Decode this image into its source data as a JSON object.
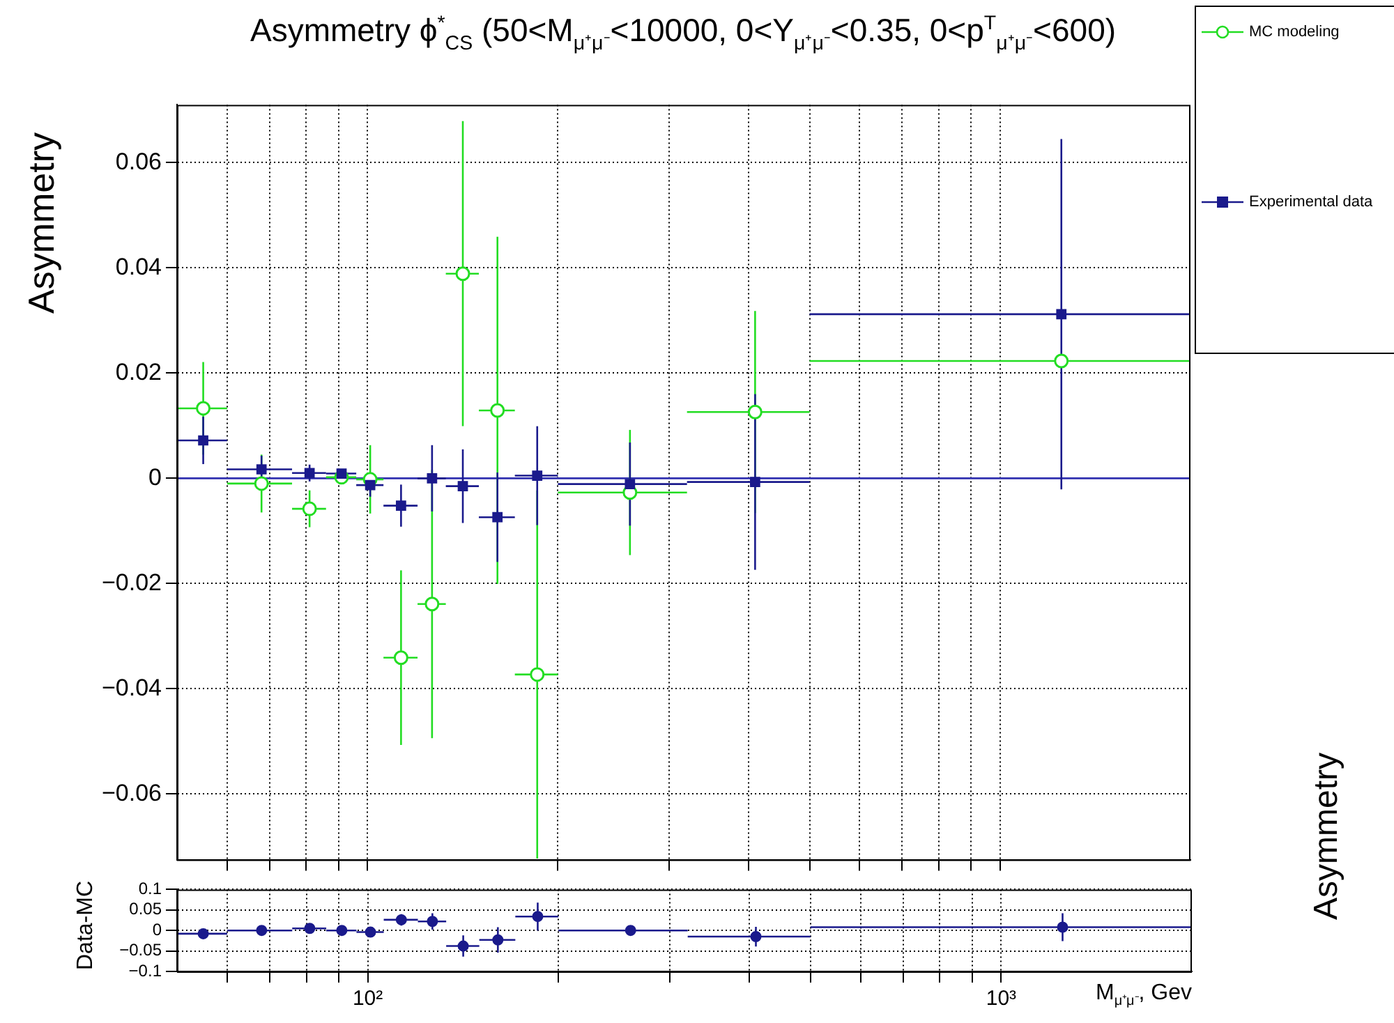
{
  "chart_data": [
    {
      "type": "scatter",
      "title": "Asymmetry ϕ$^{*}$$_{CS}$ (50<M$_{μ⁺μ⁻}$<10000, 0<Y$_{μ⁺μ⁻}$<0.35, 0<p$^{T}$$_{μ⁺μ⁻}$<600)",
      "ylabel": "Asymmetry",
      "log": "x",
      "grid": true,
      "legend": "top right",
      "tick_labels": "y",
      "xlim": [
        50,
        2000
      ],
      "xticks": [
        {
          "value": 60,
          "label": null
        },
        {
          "value": 70,
          "label": null
        },
        {
          "value": 80,
          "label": null
        },
        {
          "value": 90,
          "label": null
        },
        {
          "value": 100,
          "label": null
        },
        {
          "value": 200,
          "label": null
        },
        {
          "value": 300,
          "label": null
        },
        {
          "value": 400,
          "label": null
        },
        {
          "value": 500,
          "label": null
        },
        {
          "value": 600,
          "label": null
        },
        {
          "value": 700,
          "label": null
        },
        {
          "value": 800,
          "label": null
        },
        {
          "value": 900,
          "label": null
        },
        {
          "value": 1000,
          "label": null
        }
      ],
      "ylim": [
        -0.0725,
        0.071
      ],
      "yticks": [
        {
          "value": -0.06,
          "label": "−0.06"
        },
        {
          "value": -0.04,
          "label": "−0.04"
        },
        {
          "value": -0.02,
          "label": "−0.02"
        },
        0,
        0.02,
        0.04,
        0.06
      ],
      "x": [
        55,
        68,
        81,
        91,
        101,
        113,
        126.5,
        141.5,
        160.5,
        185.5,
        260,
        410,
        1250
      ],
      "series": [
        {
          "name": "MC modeling",
          "color": "#22dd22",
          "marker": "circle",
          "values": [
            0.0133,
            -0.001,
            -0.0058,
            0.0002,
            -0.0002,
            -0.0341,
            -0.0239,
            0.0389,
            0.0129,
            -0.0373,
            -0.0027,
            0.0126,
            0.0223
          ],
          "errors": [
            0.0088,
            0.0055,
            0.0035,
            null,
            0.0065,
            0.0166,
            0.0255,
            0.029,
            0.033,
            0.035,
            0.0119,
            0.0192,
            null
          ],
          "xerrors": [
            [
              50,
              60
            ],
            [
              60,
              76
            ],
            [
              76,
              86
            ],
            [
              86,
              96
            ],
            [
              96,
              106
            ],
            [
              106,
              120
            ],
            [
              120,
              133
            ],
            [
              133,
              150
            ],
            [
              150,
              171
            ],
            [
              171,
              200
            ],
            [
              200,
              320
            ],
            [
              320,
              500
            ],
            [
              500,
              2000
            ]
          ]
        },
        {
          "name": "Experimental data",
          "color": "#1a1a8c",
          "marker": "square",
          "values": [
            0.0072,
            0.0017,
            0.001,
            0.0009,
            -0.0013,
            -0.0052,
            0,
            -0.0015,
            -0.0074,
            0.0005,
            -0.0011,
            -0.0007,
            0.0312
          ],
          "errors": [
            0.0045,
            0.0026,
            0.0016,
            null,
            0.0022,
            0.004,
            0.0063,
            0.007,
            0.0085,
            0.0094,
            0.0079,
            0.0167,
            0.0333
          ],
          "xerrors": [
            [
              50,
              60
            ],
            [
              60,
              76
            ],
            [
              76,
              86
            ],
            [
              86,
              96
            ],
            [
              96,
              106
            ],
            [
              106,
              120
            ],
            [
              120,
              133
            ],
            [
              133,
              150
            ],
            [
              150,
              171
            ],
            [
              171,
              200
            ],
            [
              200,
              320
            ],
            [
              320,
              500
            ],
            [
              500,
              2000
            ]
          ]
        }
      ],
      "ref_lines": [
        {
          "axis": "y",
          "value": 0,
          "color": "#3030b0"
        }
      ],
      "annotations": [
        "Asymmetry"
      ]
    },
    {
      "type": "scatter",
      "xlabel": "M$_{μ⁺μ⁻}$, Gev",
      "ylabel": "Data-MC",
      "log": "x",
      "grid": true,
      "xlim": [
        50,
        2000
      ],
      "xticks": [
        {
          "value": 60,
          "label": null
        },
        {
          "value": 70,
          "label": null
        },
        {
          "value": 80,
          "label": null
        },
        {
          "value": 90,
          "label": null
        },
        {
          "value": 100,
          "label": "10²"
        },
        {
          "value": 200,
          "label": null
        },
        {
          "value": 300,
          "label": null
        },
        {
          "value": 400,
          "label": null
        },
        {
          "value": 500,
          "label": null
        },
        {
          "value": 600,
          "label": null
        },
        {
          "value": 700,
          "label": null
        },
        {
          "value": 800,
          "label": null
        },
        {
          "value": 900,
          "label": null
        },
        {
          "value": 1000,
          "label": "10³"
        }
      ],
      "ylim": [
        -0.1,
        0.1
      ],
      "yticks": [
        {
          "value": -0.1,
          "label": "−0.1"
        },
        {
          "value": -0.05,
          "label": "−0.05"
        },
        0,
        0.05,
        0.1
      ],
      "x": [
        55,
        68,
        81,
        91,
        101,
        113,
        126.5,
        141.5,
        160.5,
        185.5,
        260,
        410,
        1250
      ],
      "series": [
        {
          "color": "#1a1a8c",
          "marker": "circle",
          "values": [
            -0.008,
            0,
            0.005,
            0,
            -0.004,
            0.026,
            0.022,
            -0.038,
            -0.023,
            0.034,
            0,
            -0.015,
            0.008
          ],
          "errors": [
            0.005,
            0.005,
            0.005,
            0.004,
            0.005,
            0.014,
            0.02,
            0.026,
            0.031,
            0.034,
            null,
            0.024,
            0.034
          ],
          "xerrors": [
            [
              50,
              60
            ],
            [
              60,
              76
            ],
            [
              76,
              86
            ],
            [
              86,
              96
            ],
            [
              96,
              106
            ],
            [
              106,
              120
            ],
            [
              120,
              133
            ],
            [
              133,
              150
            ],
            [
              150,
              171
            ],
            [
              171,
              200
            ],
            [
              200,
              320
            ],
            [
              320,
              500
            ],
            [
              500,
              2000
            ]
          ]
        }
      ]
    }
  ]
}
